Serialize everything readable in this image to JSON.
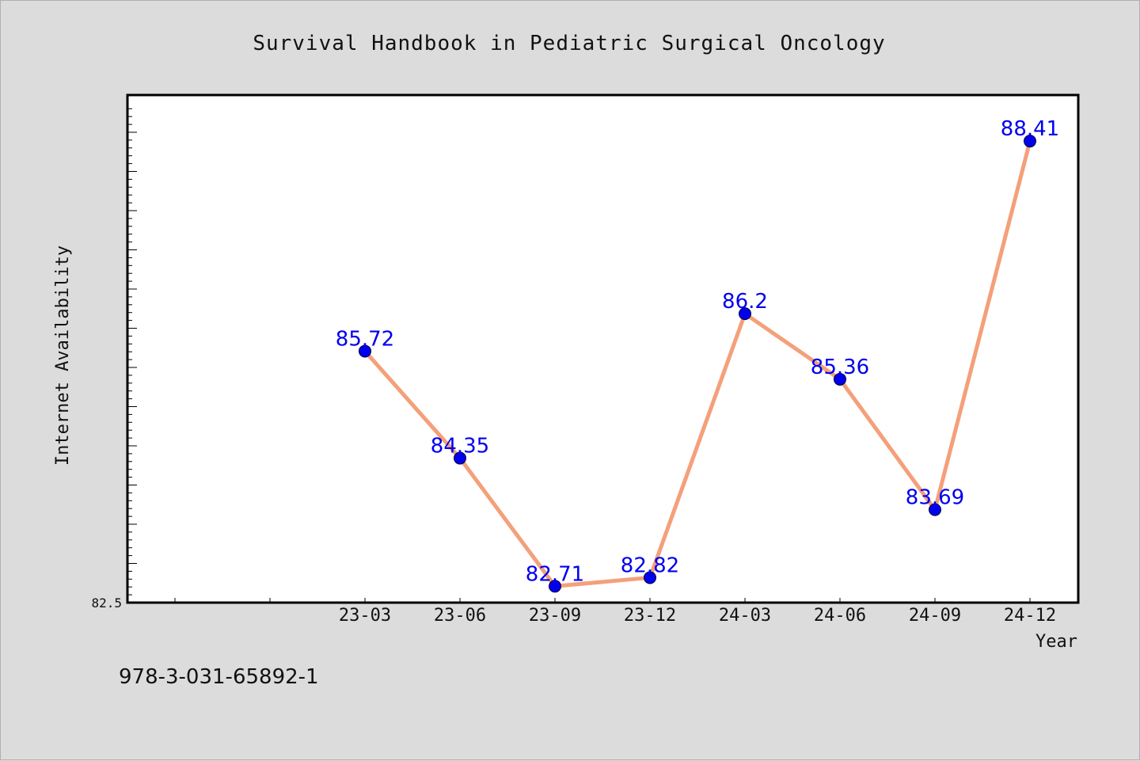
{
  "chart_data": {
    "type": "line",
    "title": "Survival Handbook in Pediatric Surgical Oncology",
    "xlabel": "Year",
    "ylabel": "Internet Availability",
    "categories": [
      "23-03",
      "23-06",
      "23-09",
      "23-12",
      "24-03",
      "24-06",
      "24-09",
      "24-12"
    ],
    "values": [
      85.72,
      84.35,
      82.71,
      82.82,
      86.2,
      85.36,
      83.69,
      88.41
    ],
    "value_labels": [
      "85.72",
      "84.35",
      "82.71",
      "82.82",
      "86.2",
      "85.36",
      "83.69",
      "88.41"
    ],
    "ylim": [
      82.5,
      89.0
    ],
    "y_tick_label": "82.5",
    "grid": false,
    "line_color": "#f4a07a",
    "marker_color": "#0000ee",
    "label_color": "#0000ee"
  },
  "footer": {
    "isbn": "978-3-031-65892-1"
  }
}
